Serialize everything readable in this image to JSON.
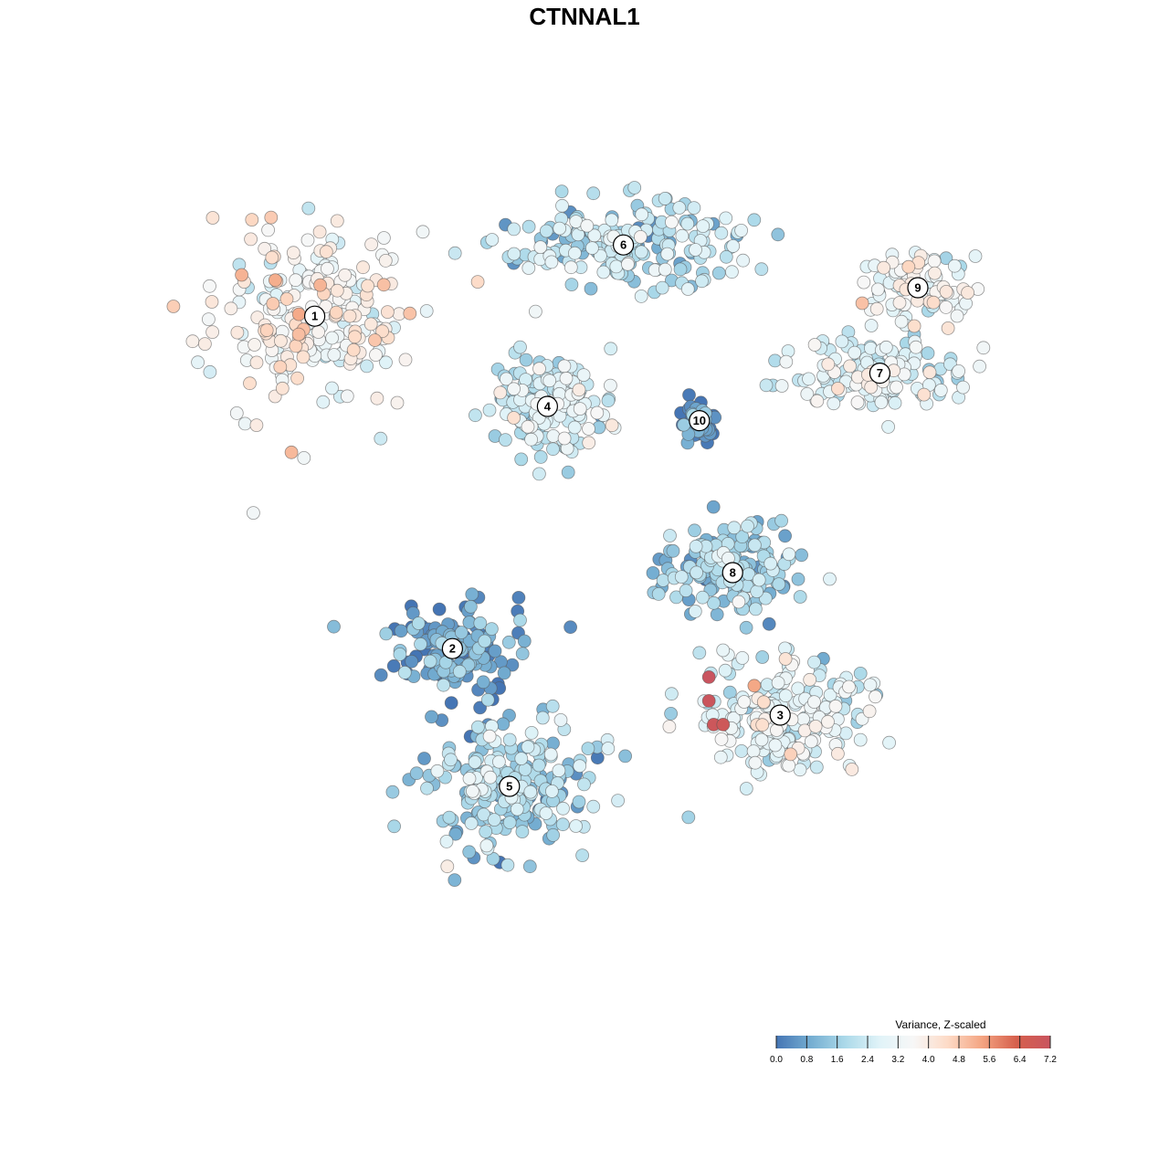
{
  "chart_data": {
    "type": "scatter",
    "title": "CTNNAL1",
    "xlabel": "",
    "ylabel": "",
    "grid": false,
    "color_scale": {
      "title": "Variance, Z-scaled",
      "min": 0.0,
      "max": 7.2,
      "ticks": [
        "0.0",
        "0.8",
        "1.6",
        "2.4",
        "3.2",
        "4.0",
        "4.8",
        "5.6",
        "6.4",
        "7.2"
      ],
      "colors": [
        "#4575b4",
        "#74add1",
        "#abd9e9",
        "#e0f3f8",
        "#f7f7f7",
        "#fddbc7",
        "#f4a582",
        "#d6604d",
        "#c9545f"
      ],
      "placement": "bottom-right"
    },
    "clusters": [
      {
        "id": "1",
        "x": -5.2,
        "y": 4.4,
        "mean_value": 3.6
      },
      {
        "id": "2",
        "x": -2.3,
        "y": -2.6,
        "mean_value": 0.8
      },
      {
        "id": "3",
        "x": 4.6,
        "y": -4.0,
        "mean_value": 2.8
      },
      {
        "id": "4",
        "x": -0.3,
        "y": 2.5,
        "mean_value": 2.5
      },
      {
        "id": "5",
        "x": -1.1,
        "y": -5.5,
        "mean_value": 1.7
      },
      {
        "id": "6",
        "x": 1.3,
        "y": 5.9,
        "mean_value": 2.0
      },
      {
        "id": "7",
        "x": 6.7,
        "y": 3.2,
        "mean_value": 2.7
      },
      {
        "id": "8",
        "x": 3.6,
        "y": -1.0,
        "mean_value": 1.5
      },
      {
        "id": "9",
        "x": 7.5,
        "y": 5.0,
        "mean_value": 3.1
      },
      {
        "id": "10",
        "x": 2.9,
        "y": 2.2,
        "mean_value": 0.3
      }
    ],
    "high_value_points": [
      {
        "x": 3.1,
        "y": -3.2,
        "value": 7.2
      },
      {
        "x": 3.1,
        "y": -3.7,
        "value": 7.1
      },
      {
        "x": 3.2,
        "y": -4.2,
        "value": 7.0
      },
      {
        "x": 3.4,
        "y": -4.2,
        "value": 6.9
      }
    ]
  }
}
